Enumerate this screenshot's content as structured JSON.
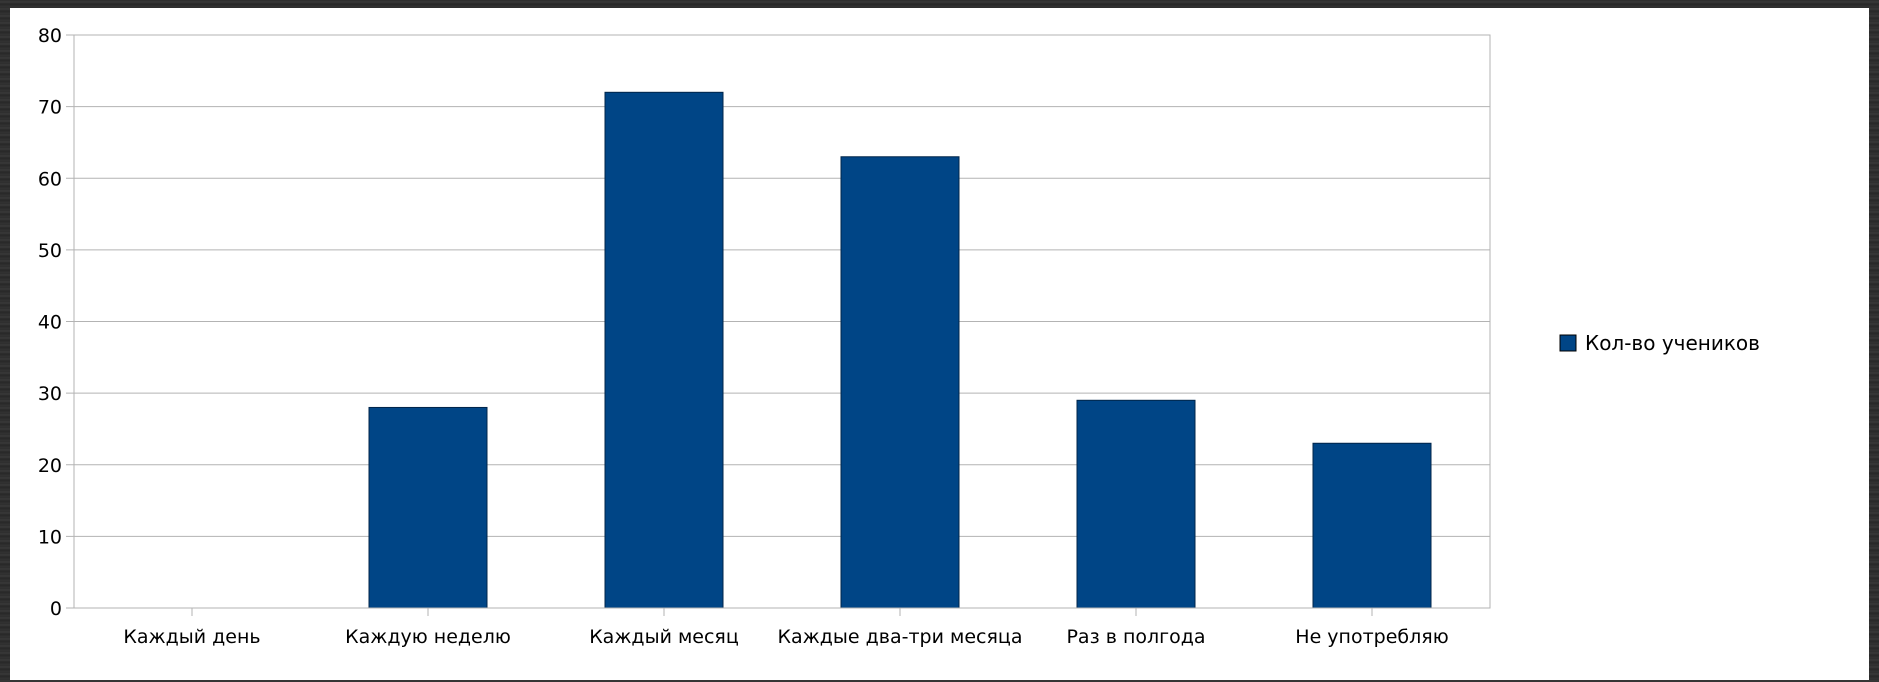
{
  "chart_data": {
    "type": "bar",
    "categories": [
      "Каждый день",
      "Каждую неделю",
      "Каждый месяц",
      "Каждые два-три месяца",
      "Раз в полгода",
      "Не употребляю"
    ],
    "series": [
      {
        "name": "Кол-во учеников",
        "values": [
          0,
          28,
          72,
          63,
          29,
          23
        ]
      }
    ],
    "ylim": [
      0,
      80
    ],
    "yticks": [
      "0",
      "10",
      "20",
      "30",
      "40",
      "50",
      "60",
      "70",
      "80"
    ],
    "grid": true,
    "legend": "right",
    "colors": {
      "bar": "#004586",
      "grid": "#b3b3b3",
      "axis": "#b3b3b3"
    }
  }
}
